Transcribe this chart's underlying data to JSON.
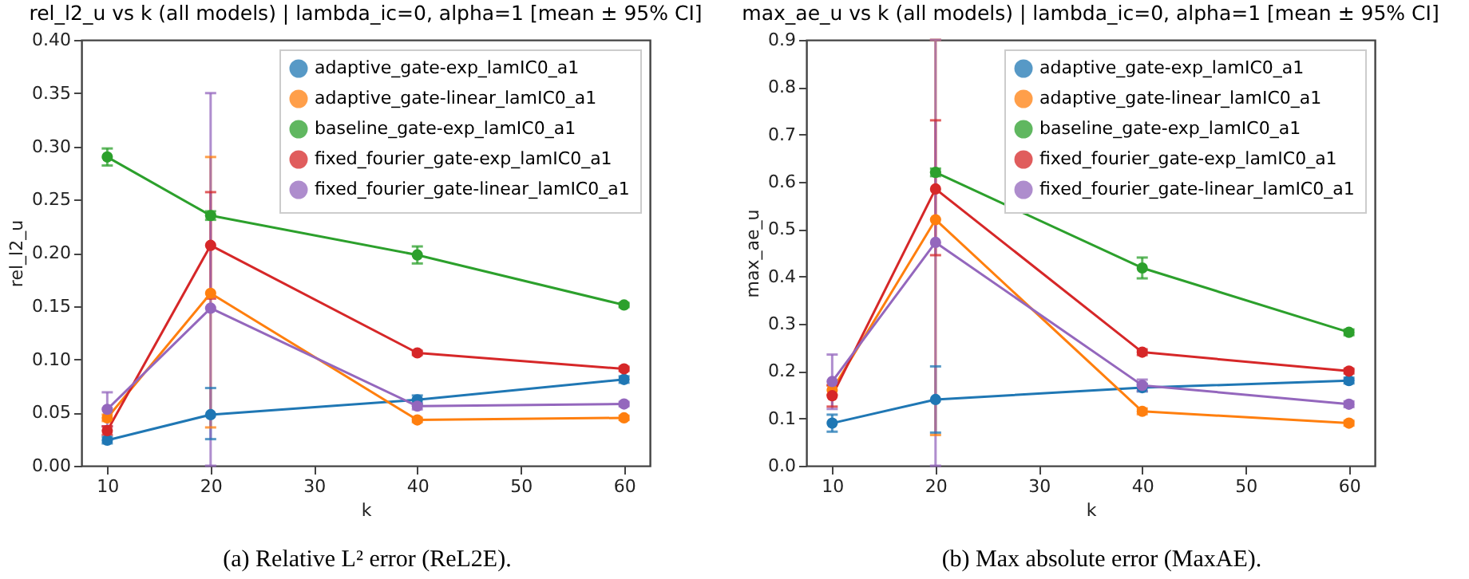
{
  "chart_data": [
    {
      "type": "line",
      "title": "rel_l2_u vs k (all models) | lambda_ic=0, alpha=1 [mean ± 95% CI]",
      "xlabel": "k",
      "ylabel": "rel_l2_u",
      "x": [
        10,
        20,
        40,
        60
      ],
      "xlim": [
        7.5,
        62.5
      ],
      "xticks": [
        10,
        20,
        30,
        40,
        50,
        60
      ],
      "ylim": [
        0,
        0.4
      ],
      "yticks": [
        {
          "value": 0,
          "label": "0.00"
        },
        0.05,
        {
          "value": 0.1,
          "label": "0.10"
        },
        0.15,
        {
          "value": 0.2,
          "label": "0.20"
        },
        0.25,
        {
          "value": 0.3,
          "label": "0.30"
        },
        0.35,
        {
          "value": 0.4,
          "label": "0.40"
        }
      ],
      "marker": "circle",
      "legend": "top right",
      "annotations": [
        "(a) Relative L² error (ReL2E)."
      ],
      "series": [
        {
          "name": "adaptive_gate-exp_lamIC0_a1",
          "color": "#1f77b4",
          "values": [
            0.024,
            0.048,
            0.062,
            0.081
          ],
          "errors": [
            0.003,
            [
              0.025,
              0.073
            ],
            0.004,
            0.003
          ]
        },
        {
          "name": "adaptive_gate-linear_lamIC0_a1",
          "color": "#ff7f0e",
          "values": [
            0.045,
            0.162,
            0.043,
            0.045
          ],
          "errors": [
            0.003,
            [
              0.036,
              0.29
            ],
            0.002,
            0.002
          ]
        },
        {
          "name": "baseline_gate-exp_lamIC0_a1",
          "color": "#2ca02c",
          "values": [
            0.29,
            0.235,
            0.198,
            0.151
          ],
          "errors": [
            0.008,
            0.004,
            0.008,
            0.002
          ]
        },
        {
          "name": "fixed_fourier_gate-exp_lamIC0_a1",
          "color": "#d62728",
          "values": [
            0.033,
            0.207,
            0.106,
            0.091
          ],
          "errors": [
            0.004,
            [
              0.157,
              0.257
            ],
            0.002,
            0.002
          ]
        },
        {
          "name": "fixed_fourier_gate-linear_lamIC0_a1",
          "color": "#9467bd",
          "values": [
            0.053,
            0.148,
            0.056,
            0.058
          ],
          "errors": [
            [
              0.037,
              0.069
            ],
            [
              0,
              0.35
            ],
            0.003,
            0.002
          ]
        }
      ]
    },
    {
      "type": "line",
      "title": "max_ae_u vs k (all models) | lambda_ic=0, alpha=1 [mean ± 95% CI]",
      "xlabel": "k",
      "ylabel": "max_ae_u",
      "x": [
        10,
        20,
        40,
        60
      ],
      "xlim": [
        7.5,
        62.5
      ],
      "xticks": [
        10,
        20,
        30,
        40,
        50,
        60
      ],
      "ylim": [
        0,
        0.9
      ],
      "yticks": [
        {
          "value": 0,
          "label": "0.0"
        },
        0.1,
        0.2,
        0.3,
        0.4,
        0.5,
        0.6,
        0.7,
        0.8,
        0.9
      ],
      "marker": "circle",
      "legend": "top right",
      "annotations": [
        "(b) Max absolute error (MaxAE)."
      ],
      "series": [
        {
          "name": "adaptive_gate-exp_lamIC0_a1",
          "color": "#1f77b4",
          "values": [
            0.09,
            0.14,
            0.165,
            0.18
          ],
          "errors": [
            0.018,
            [
              0.07,
              0.21
            ],
            0.008,
            0.006
          ]
        },
        {
          "name": "adaptive_gate-linear_lamIC0_a1",
          "color": "#ff7f0e",
          "values": [
            0.16,
            0.52,
            0.115,
            0.09
          ],
          "errors": [
            0.01,
            [
              0.065,
              0.9
            ],
            0.006,
            0.005
          ]
        },
        {
          "name": "baseline_gate-exp_lamIC0_a1",
          "color": "#2ca02c",
          "values": [
            null,
            0.62,
            0.418,
            0.282
          ],
          "errors": [
            null,
            0.008,
            0.022,
            0.006
          ]
        },
        {
          "name": "fixed_fourier_gate-exp_lamIC0_a1",
          "color": "#d62728",
          "values": [
            0.148,
            0.585,
            0.24,
            0.2
          ],
          "errors": [
            [
              0.125,
              0.17
            ],
            [
              0.445,
              0.73
            ],
            0.006,
            0.005
          ]
        },
        {
          "name": "fixed_fourier_gate-linear_lamIC0_a1",
          "color": "#9467bd",
          "values": [
            0.178,
            0.472,
            0.17,
            0.13
          ],
          "errors": [
            [
              0.12,
              0.235
            ],
            [
              0,
              0.9
            ],
            0.012,
            0.006
          ]
        }
      ]
    }
  ]
}
